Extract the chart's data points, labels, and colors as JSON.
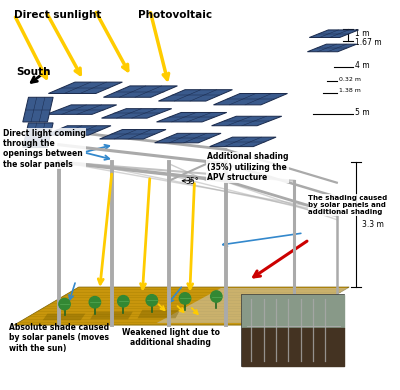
{
  "background_color": "#ffffff",
  "labels": {
    "direct_sunlight": "Direct sunlight",
    "photovoltaic": "Photovoltaic",
    "south": "South",
    "direct_light": "Direct light coming\nthrough the\nopenings between\nthe solar panels",
    "additional_shading": "Additional shading\n(35%) utilizing the\nAPV structure",
    "shading_caused": "The shading caused\nby solar panels and\nadditional shading",
    "absolute_shade": "Absolute shade caused\nby solar panels (moves\nwith the sun)",
    "weakened_light": "Weakened light due to\nadditional shading",
    "dim_1m": "1 m",
    "dim_167m": "1.67 m",
    "dim_4m": "4 m",
    "dim_032m": "0.32 m",
    "dim_138m": "1.38 m",
    "dim_5m": "5 m",
    "dim_33m": "3.3 m",
    "dim_35deg": "35°"
  },
  "colors": {
    "solar_panel": "#3a5a8c",
    "solar_panel_dark": "#1a2a4c",
    "frame": "#aaaaaa",
    "frame_dark": "#777777",
    "sunlight_arrow": "#ffcc00",
    "ground": "#c8960c",
    "shade_area": "#cccccc",
    "arrow_blue": "#3388cc",
    "arrow_red": "#cc0000",
    "broccoli": "#338833",
    "broccoli_light": "#55aa55",
    "photo_bg": "#556655",
    "photo_sky": "#889988",
    "photo_ground": "#443322",
    "photo_frame": "#aaaaaa"
  }
}
